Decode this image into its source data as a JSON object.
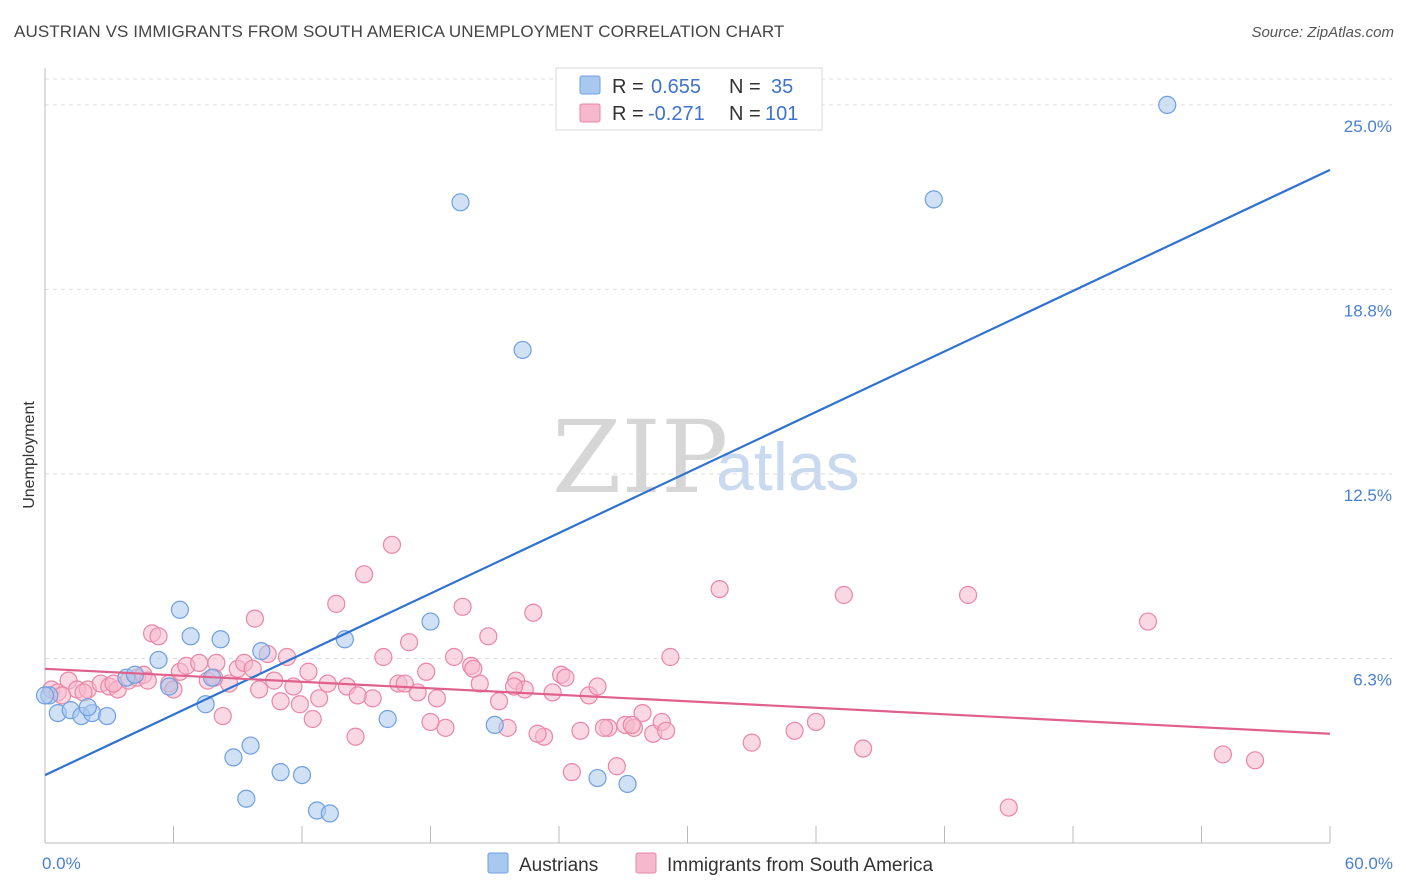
{
  "title": "AUSTRIAN VS IMMIGRANTS FROM SOUTH AMERICA UNEMPLOYMENT CORRELATION CHART",
  "source": "Source: ZipAtlas.com",
  "watermark": {
    "zip": "ZIP",
    "atlas": "atlas"
  },
  "legend_top": [
    {
      "r_label": "R =",
      "r_value": "0.655",
      "n_label": "N =",
      "n_value": "35"
    },
    {
      "r_label": "R =",
      "r_value": "-0.271",
      "n_label": "N =",
      "n_value": "101"
    }
  ],
  "colors": {
    "blue_fill": "#a9c8ef",
    "blue_stroke": "#6f9fe0",
    "blue_line": "#2f72d0",
    "pink_fill": "#f6b8cc",
    "pink_stroke": "#ea86a6",
    "pink_line": "#e0608c",
    "grid": "#dddddd",
    "tick_label": "#4a7fd0"
  },
  "chart_data": {
    "type": "scatter",
    "title": "AUSTRIAN VS IMMIGRANTS FROM SOUTH AMERICA UNEMPLOYMENT CORRELATION CHART",
    "xlabel": "",
    "ylabel": "Unemployment",
    "xlim": [
      0,
      60
    ],
    "ylim": [
      0,
      26.25
    ],
    "y_ticks": [
      {
        "value": 6.25,
        "label": "6.3%"
      },
      {
        "value": 12.5,
        "label": "12.5%"
      },
      {
        "value": 18.75,
        "label": "18.8%"
      },
      {
        "value": 25.0,
        "label": "25.0%"
      }
    ],
    "x_ticks": [
      {
        "value": 0,
        "label": "0.0%"
      },
      {
        "value": 60,
        "label": "60.0%"
      }
    ],
    "grid": "horizontal-dashed",
    "legend_position": "top-center",
    "series": [
      {
        "name": "Austrians",
        "color": "#a9c8ef",
        "trend": {
          "x": [
            0,
            60
          ],
          "y": [
            2.3,
            22.8
          ]
        },
        "points": [
          [
            0.2,
            5.0
          ],
          [
            0.6,
            4.4
          ],
          [
            1.2,
            4.5
          ],
          [
            1.7,
            4.3
          ],
          [
            2.2,
            4.4
          ],
          [
            2.9,
            4.3
          ],
          [
            3.8,
            5.6
          ],
          [
            4.2,
            5.7
          ],
          [
            5.3,
            6.2
          ],
          [
            5.8,
            5.3
          ],
          [
            6.3,
            7.9
          ],
          [
            6.8,
            7.0
          ],
          [
            7.5,
            4.7
          ],
          [
            7.8,
            5.6
          ],
          [
            8.2,
            6.9
          ],
          [
            8.8,
            2.9
          ],
          [
            9.4,
            1.5
          ],
          [
            9.6,
            3.3
          ],
          [
            10.1,
            6.5
          ],
          [
            11.0,
            2.4
          ],
          [
            12.0,
            2.3
          ],
          [
            12.7,
            1.1
          ],
          [
            13.3,
            1.0
          ],
          [
            14.0,
            6.9
          ],
          [
            16.0,
            4.2
          ],
          [
            18.0,
            7.5
          ],
          [
            19.4,
            21.7
          ],
          [
            21.0,
            4.0
          ],
          [
            22.3,
            16.7
          ],
          [
            25.8,
            2.2
          ],
          [
            27.2,
            2.0
          ],
          [
            41.5,
            21.8
          ],
          [
            52.4,
            25.0
          ],
          [
            0.0,
            5.0
          ],
          [
            2.0,
            4.6
          ]
        ]
      },
      {
        "name": "Immigrants from South America",
        "color": "#f6b8cc",
        "trend": {
          "x": [
            0,
            60
          ],
          "y": [
            5.9,
            3.7
          ]
        },
        "points": [
          [
            0.3,
            5.2
          ],
          [
            0.6,
            5.1
          ],
          [
            1.1,
            5.5
          ],
          [
            1.5,
            5.2
          ],
          [
            2.0,
            5.2
          ],
          [
            2.6,
            5.4
          ],
          [
            3.0,
            5.3
          ],
          [
            3.4,
            5.2
          ],
          [
            3.9,
            5.5
          ],
          [
            4.3,
            5.6
          ],
          [
            4.6,
            5.7
          ],
          [
            5.0,
            7.1
          ],
          [
            5.3,
            7.0
          ],
          [
            5.8,
            5.4
          ],
          [
            6.3,
            5.8
          ],
          [
            6.6,
            6.0
          ],
          [
            7.2,
            6.1
          ],
          [
            7.6,
            5.5
          ],
          [
            8.0,
            6.1
          ],
          [
            8.3,
            4.3
          ],
          [
            8.6,
            5.4
          ],
          [
            9.0,
            5.9
          ],
          [
            9.3,
            6.1
          ],
          [
            9.8,
            7.6
          ],
          [
            10.0,
            5.2
          ],
          [
            10.4,
            6.4
          ],
          [
            10.7,
            5.5
          ],
          [
            11.3,
            6.3
          ],
          [
            11.6,
            5.3
          ],
          [
            11.9,
            4.7
          ],
          [
            12.3,
            5.8
          ],
          [
            12.8,
            4.9
          ],
          [
            13.2,
            5.4
          ],
          [
            13.6,
            8.1
          ],
          [
            14.1,
            5.3
          ],
          [
            14.5,
            3.6
          ],
          [
            14.9,
            9.1
          ],
          [
            15.3,
            4.9
          ],
          [
            15.8,
            6.3
          ],
          [
            16.2,
            10.1
          ],
          [
            16.5,
            5.4
          ],
          [
            17.0,
            6.8
          ],
          [
            17.4,
            5.1
          ],
          [
            17.8,
            5.8
          ],
          [
            18.3,
            4.9
          ],
          [
            18.7,
            3.9
          ],
          [
            19.1,
            6.3
          ],
          [
            19.5,
            8.0
          ],
          [
            19.9,
            6.0
          ],
          [
            20.3,
            5.4
          ],
          [
            20.7,
            7.0
          ],
          [
            21.2,
            4.8
          ],
          [
            21.6,
            3.9
          ],
          [
            22.0,
            5.5
          ],
          [
            22.4,
            5.2
          ],
          [
            22.8,
            7.8
          ],
          [
            23.3,
            3.6
          ],
          [
            23.7,
            5.1
          ],
          [
            24.1,
            5.7
          ],
          [
            24.6,
            2.4
          ],
          [
            25.0,
            3.8
          ],
          [
            25.4,
            5.0
          ],
          [
            25.8,
            5.3
          ],
          [
            26.3,
            3.9
          ],
          [
            26.7,
            2.6
          ],
          [
            27.1,
            4.0
          ],
          [
            27.5,
            3.9
          ],
          [
            27.9,
            4.4
          ],
          [
            28.4,
            3.7
          ],
          [
            28.8,
            4.1
          ],
          [
            29.2,
            6.3
          ],
          [
            31.5,
            8.6
          ],
          [
            33.0,
            3.4
          ],
          [
            35.0,
            3.8
          ],
          [
            36.0,
            4.1
          ],
          [
            37.3,
            8.4
          ],
          [
            38.2,
            3.2
          ],
          [
            43.1,
            8.4
          ],
          [
            45.0,
            1.2
          ],
          [
            51.5,
            7.5
          ],
          [
            55.0,
            3.0
          ],
          [
            56.5,
            2.8
          ],
          [
            0.8,
            5.0
          ],
          [
            1.8,
            5.1
          ],
          [
            3.2,
            5.4
          ],
          [
            4.8,
            5.5
          ],
          [
            6.0,
            5.2
          ],
          [
            7.9,
            5.6
          ],
          [
            9.7,
            5.9
          ],
          [
            11.0,
            4.8
          ],
          [
            12.5,
            4.2
          ],
          [
            14.6,
            5.0
          ],
          [
            16.8,
            5.4
          ],
          [
            18.0,
            4.1
          ],
          [
            20.0,
            5.9
          ],
          [
            21.9,
            5.3
          ],
          [
            23.0,
            3.7
          ],
          [
            24.3,
            5.6
          ],
          [
            26.1,
            3.9
          ],
          [
            27.4,
            4.0
          ],
          [
            29.0,
            3.8
          ]
        ]
      }
    ]
  }
}
